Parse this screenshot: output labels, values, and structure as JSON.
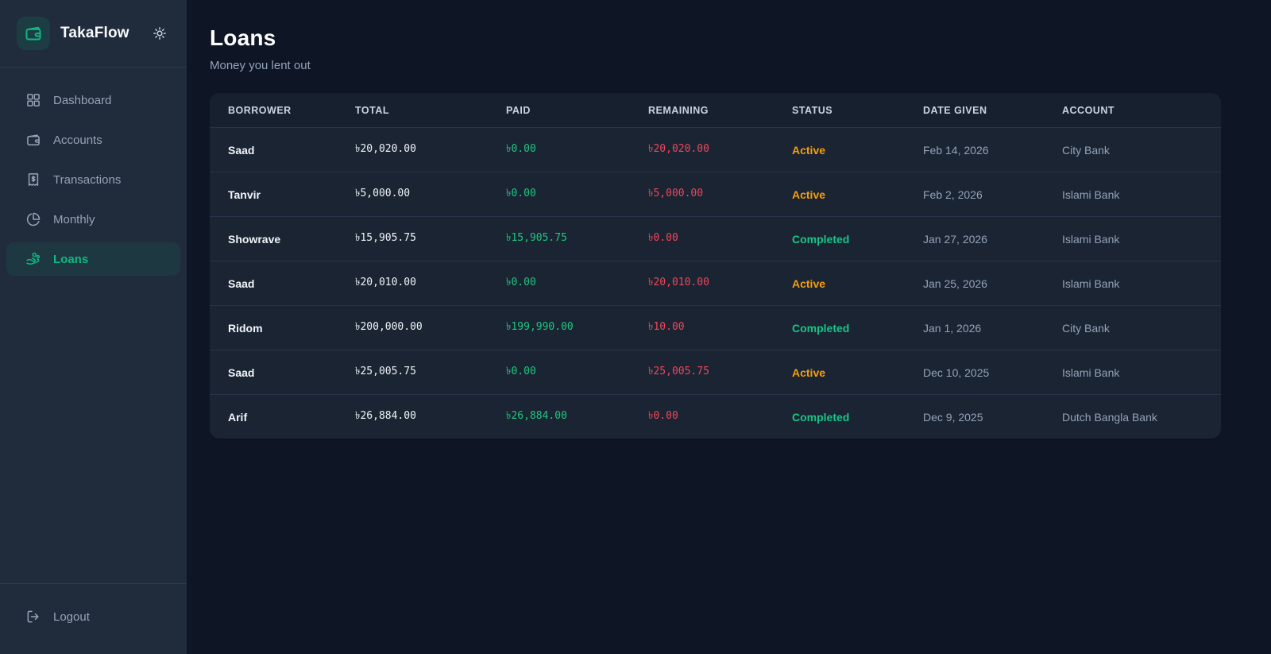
{
  "app": {
    "name": "TakaFlow"
  },
  "sidebar": {
    "items": [
      {
        "label": "Dashboard",
        "icon": "dashboard-grid-icon",
        "active": false
      },
      {
        "label": "Accounts",
        "icon": "wallet-icon",
        "active": false
      },
      {
        "label": "Transactions",
        "icon": "receipt-dollar-icon",
        "active": false
      },
      {
        "label": "Monthly",
        "icon": "pie-chart-icon",
        "active": false
      },
      {
        "label": "Loans",
        "icon": "hand-coins-icon",
        "active": true
      }
    ],
    "logout_label": "Logout"
  },
  "page": {
    "title": "Loans",
    "subtitle": "Money you lent out"
  },
  "table": {
    "columns": [
      "BORROWER",
      "TOTAL",
      "PAID",
      "REMAINING",
      "STATUS",
      "DATE GIVEN",
      "ACCOUNT"
    ],
    "rows": [
      {
        "borrower": "Saad",
        "total": "৳20,020.00",
        "paid": "৳0.00",
        "remaining": "৳20,020.00",
        "status": "Active",
        "date_given": "Feb 14, 2026",
        "account": "City Bank"
      },
      {
        "borrower": "Tanvir",
        "total": "৳5,000.00",
        "paid": "৳0.00",
        "remaining": "৳5,000.00",
        "status": "Active",
        "date_given": "Feb 2, 2026",
        "account": "Islami Bank"
      },
      {
        "borrower": "Showrave",
        "total": "৳15,905.75",
        "paid": "৳15,905.75",
        "remaining": "৳0.00",
        "status": "Completed",
        "date_given": "Jan 27, 2026",
        "account": "Islami Bank"
      },
      {
        "borrower": "Saad",
        "total": "৳20,010.00",
        "paid": "৳0.00",
        "remaining": "৳20,010.00",
        "status": "Active",
        "date_given": "Jan 25, 2026",
        "account": "Islami Bank"
      },
      {
        "borrower": "Ridom",
        "total": "৳200,000.00",
        "paid": "৳199,990.00",
        "remaining": "৳10.00",
        "status": "Completed",
        "date_given": "Jan 1, 2026",
        "account": "City Bank"
      },
      {
        "borrower": "Saad",
        "total": "৳25,005.75",
        "paid": "৳0.00",
        "remaining": "৳25,005.75",
        "status": "Active",
        "date_given": "Dec 10, 2025",
        "account": "Islami Bank"
      },
      {
        "borrower": "Arif",
        "total": "৳26,884.00",
        "paid": "৳26,884.00",
        "remaining": "৳0.00",
        "status": "Completed",
        "date_given": "Dec 9, 2025",
        "account": "Dutch Bangla Bank"
      }
    ]
  },
  "colors": {
    "accent_green": "#10b981",
    "paid_green": "#1fc77e",
    "remaining_red": "#ef4759",
    "status": {
      "Active": "#f59e0b",
      "Completed": "#18c584"
    },
    "sidebar_bg": "#202b3c",
    "main_bg": "#0e1525",
    "card_bg": "#1a2433"
  }
}
